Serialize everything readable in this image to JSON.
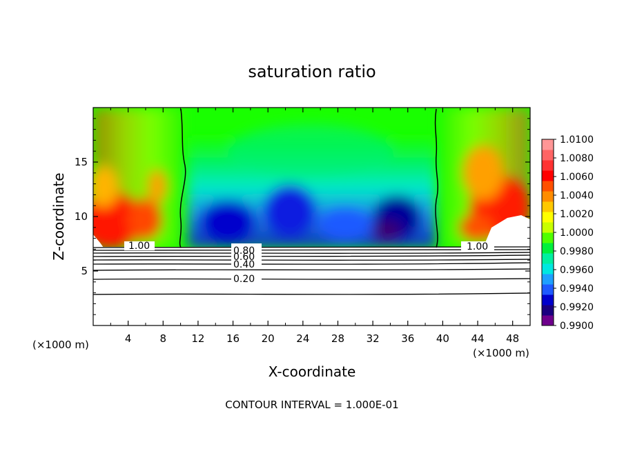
{
  "chart_data": {
    "type": "heatmap",
    "title": "saturation ratio",
    "xlabel": "X-coordinate",
    "ylabel": "Z-coordinate",
    "x_unit_left": "(×1000 m)",
    "x_unit_right": "(×1000 m)",
    "xlim": [
      0,
      50
    ],
    "ylim": [
      0,
      20
    ],
    "x_ticks": [
      "4",
      "8",
      "12",
      "16",
      "20",
      "24",
      "28",
      "32",
      "36",
      "40",
      "44",
      "48"
    ],
    "y_ticks": [
      "5",
      "10",
      "15"
    ],
    "colorbar": {
      "levels": [
        "0.9900",
        "0.9920",
        "0.9940",
        "0.9960",
        "0.9980",
        "1.0000",
        "1.0020",
        "1.0040",
        "1.0060",
        "1.0080",
        "1.0100"
      ],
      "colors": [
        "#6e008c",
        "#1a0080",
        "#0000cc",
        "#1e5aff",
        "#1ea0ff",
        "#00e8e0",
        "#00f0a0",
        "#00f03c",
        "#50ff00",
        "#c8ff00",
        "#ffff00",
        "#ffc800",
        "#ff8c00",
        "#ff5000",
        "#ff0000",
        "#ff3232",
        "#ff6464",
        "#ff9696"
      ]
    },
    "contour_labels": [
      "1.00",
      "0.80",
      "0.60",
      "0.40",
      "0.20",
      "1.00"
    ],
    "contour_interval_text": "CONTOUR INTERVAL = 1.000E-01"
  }
}
